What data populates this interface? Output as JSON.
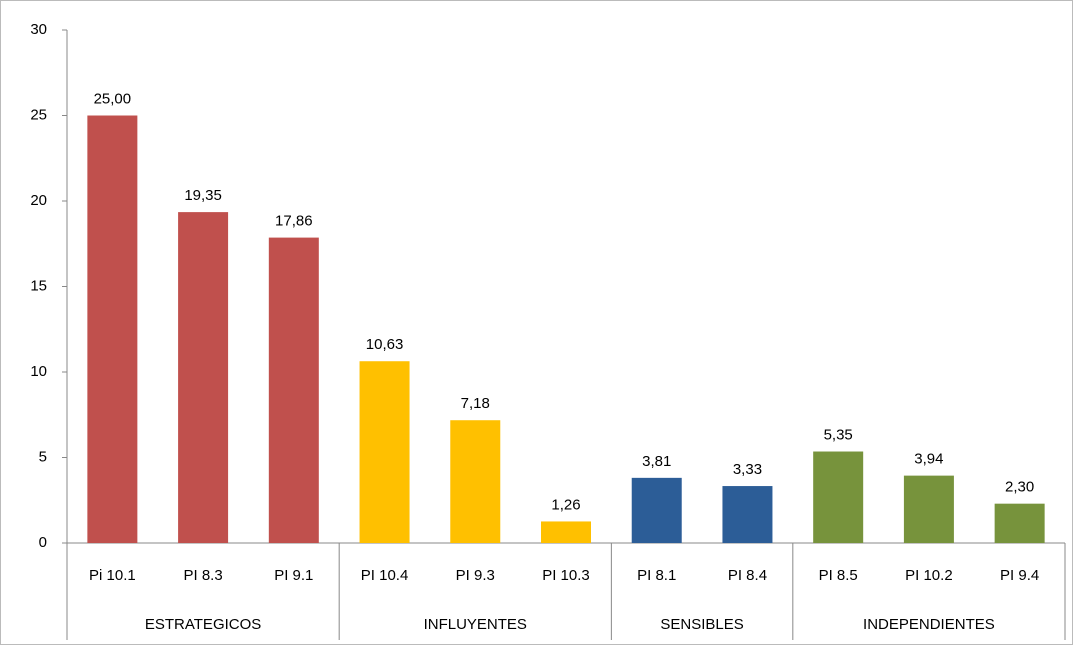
{
  "chart_data": {
    "type": "bar",
    "ylim": [
      0,
      30
    ],
    "yticks": [
      0,
      5,
      10,
      15,
      20,
      25,
      30
    ],
    "grid": false,
    "groups": [
      {
        "name": "ESTRATEGICOS",
        "color": "#c0504d",
        "categories": [
          "Pi 10.1",
          "PI 8.3",
          "PI 9.1"
        ],
        "values": [
          25.0,
          19.35,
          17.86
        ],
        "value_labels": [
          "25,00",
          "19,35",
          "17,86"
        ]
      },
      {
        "name": "INFLUYENTES",
        "color": "#ffc000",
        "categories": [
          "PI 10.4",
          "PI 9.3",
          "PI 10.3"
        ],
        "values": [
          10.63,
          7.18,
          1.26
        ],
        "value_labels": [
          "10,63",
          "7,18",
          "1,26"
        ]
      },
      {
        "name": "SENSIBLES",
        "color": "#2c5d97",
        "categories": [
          "PI 8.1",
          "PI 8.4"
        ],
        "values": [
          3.81,
          3.33
        ],
        "value_labels": [
          "3,81",
          "3,33"
        ]
      },
      {
        "name": "INDEPENDIENTES",
        "color": "#77933c",
        "categories": [
          "PI 8.5",
          "PI 10.2",
          "PI 9.4"
        ],
        "values": [
          5.35,
          3.94,
          2.3
        ],
        "value_labels": [
          "5,35",
          "3,94",
          "2,30"
        ]
      }
    ]
  }
}
